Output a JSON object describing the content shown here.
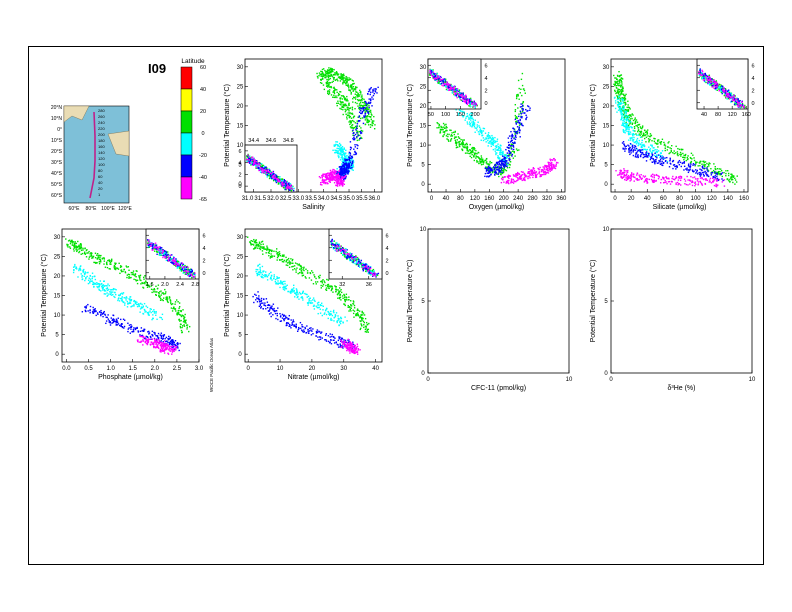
{
  "header": {
    "section_id": "I09"
  },
  "map": {
    "lat_labels": [
      "20°N",
      "10°N",
      "0°",
      "10°S",
      "20°S",
      "30°S",
      "40°S",
      "50°S",
      "60°S"
    ],
    "lon_labels": [
      "60°E",
      "80°E",
      "100°E",
      "120°E"
    ],
    "station_labels": [
      "280",
      "260",
      "240",
      "220",
      "200",
      "180",
      "160",
      "140",
      "120",
      "100",
      "80",
      "60",
      "40",
      "20",
      "1"
    ],
    "colors": {
      "ocean": "#7ec0d8",
      "land": "#e9dcb4",
      "track": "#c0208a"
    }
  },
  "colorbar": {
    "title": "Latitude",
    "tick_labels": [
      "60",
      "40",
      "20",
      "0",
      "-20",
      "-40",
      "-65"
    ],
    "colors": [
      "#ff0000",
      "#ffff00",
      "#00e000",
      "#00ffff",
      "#0000ff",
      "#ff00ff"
    ]
  },
  "side_credit": "WOCE Pacific Ocean Atlas",
  "chart_data": [
    {
      "id": "salinity",
      "type": "scatter",
      "xlabel": "Salinity",
      "ylabel": "Potential Temperature (°C)",
      "xlim": [
        30.9,
        36.3
      ],
      "ylim": [
        -2,
        32
      ],
      "x_ticks": [
        "31.0",
        "31.5",
        "32.0",
        "32.5",
        "33.0",
        "33.5",
        "34.0",
        "34.5",
        "35.0",
        "35.5",
        "36.0"
      ],
      "y_ticks": [
        "0",
        "5",
        "10",
        "15",
        "20",
        "25",
        "30"
      ],
      "series": [
        {
          "color": "#00e000",
          "x": [
            34.0,
            34.3,
            34.8,
            35.2,
            35.6,
            35.9,
            33.8,
            34.6,
            35.0,
            35.4
          ],
          "y": [
            29,
            28.5,
            27,
            24,
            20,
            15,
            28,
            22,
            18,
            12
          ]
        },
        {
          "color": "#00ffff",
          "x": [
            34.5,
            34.7,
            34.9,
            35.0,
            34.8,
            34.6
          ],
          "y": [
            10,
            8,
            6,
            5,
            4,
            3
          ]
        },
        {
          "color": "#0000ff",
          "x": [
            34.6,
            34.7,
            34.8,
            35.0,
            35.5,
            36.0
          ],
          "y": [
            2,
            3,
            4,
            6,
            18,
            25
          ]
        },
        {
          "color": "#ff00ff",
          "x": [
            33.9,
            34.2,
            34.4,
            34.6,
            34.7
          ],
          "y": [
            1,
            2,
            3,
            0.5,
            1.5
          ]
        }
      ],
      "inset": {
        "x_ticks": [
          "34.4",
          "34.6",
          "34.8"
        ],
        "y_ticks": [
          "0",
          "2",
          "4",
          "6"
        ],
        "xlim": [
          34.3,
          34.9
        ],
        "ylim": [
          -1,
          7
        ]
      }
    },
    {
      "id": "oxygen",
      "type": "scatter",
      "xlabel": "Oxygen (µmol/kg)",
      "ylabel": "Potential Temperature (°C)",
      "xlim": [
        -10,
        370
      ],
      "ylim": [
        -2,
        32
      ],
      "x_ticks": [
        "0",
        "40",
        "80",
        "120",
        "160",
        "200",
        "240",
        "280",
        "320",
        "360"
      ],
      "y_ticks": [
        "0",
        "5",
        "10",
        "15",
        "20",
        "25",
        "30"
      ],
      "series": [
        {
          "color": "#00e000",
          "x": [
            20,
            60,
            100,
            140,
            190,
            230,
            250
          ],
          "y": [
            15,
            12,
            9,
            6,
            3,
            10,
            28
          ]
        },
        {
          "color": "#00ffff",
          "x": [
            60,
            100,
            140,
            180,
            200
          ],
          "y": [
            22,
            17,
            13,
            10,
            6
          ]
        },
        {
          "color": "#0000ff",
          "x": [
            150,
            180,
            200,
            230,
            260
          ],
          "y": [
            3,
            4,
            6,
            13,
            20
          ]
        },
        {
          "color": "#ff00ff",
          "x": [
            200,
            240,
            280,
            320,
            340
          ],
          "y": [
            1,
            2,
            3,
            4,
            6
          ]
        }
      ],
      "inset": {
        "x_ticks": [
          "50",
          "100",
          "150",
          "200"
        ],
        "y_ticks": [
          "0",
          "2",
          "4",
          "6"
        ],
        "xlim": [
          40,
          220
        ],
        "ylim": [
          -1,
          7
        ]
      }
    },
    {
      "id": "silicate",
      "type": "scatter",
      "xlabel": "Silicate (µmol/kg)",
      "ylabel": "Potential Temperature (°C)",
      "xlim": [
        -5,
        165
      ],
      "ylim": [
        -2,
        32
      ],
      "x_ticks": [
        "0",
        "20",
        "40",
        "60",
        "80",
        "100",
        "120",
        "140",
        "160"
      ],
      "y_ticks": [
        "0",
        "5",
        "10",
        "15",
        "20",
        "25",
        "30"
      ],
      "series": [
        {
          "color": "#00e000",
          "x": [
            2,
            5,
            10,
            20,
            40,
            80,
            120,
            150
          ],
          "y": [
            28,
            24,
            20,
            16,
            12,
            8,
            4,
            1
          ]
        },
        {
          "color": "#00ffff",
          "x": [
            3,
            8,
            15,
            30,
            60
          ],
          "y": [
            22,
            18,
            14,
            10,
            7
          ]
        },
        {
          "color": "#0000ff",
          "x": [
            10,
            30,
            60,
            100,
            130
          ],
          "y": [
            10,
            8,
            6,
            4,
            2
          ]
        },
        {
          "color": "#ff00ff",
          "x": [
            5,
            20,
            50,
            90,
            130
          ],
          "y": [
            3,
            2,
            1.5,
            1,
            0.5
          ]
        }
      ],
      "inset": {
        "x_ticks": [
          "40",
          "80",
          "120",
          "160"
        ],
        "y_ticks": [
          "0",
          "2",
          "4",
          "6"
        ],
        "xlim": [
          20,
          165
        ],
        "ylim": [
          -1,
          7
        ]
      }
    },
    {
      "id": "phosphate",
      "type": "scatter",
      "xlabel": "Phosphate (µmol/kg)",
      "ylabel": "Potential Temperature (°C)",
      "xlim": [
        -0.1,
        3.0
      ],
      "ylim": [
        -2,
        32
      ],
      "x_ticks": [
        "0.0",
        "0.5",
        "1.0",
        "1.5",
        "2.0",
        "2.5",
        "3.0"
      ],
      "y_ticks": [
        "0",
        "5",
        "10",
        "15",
        "20",
        "25",
        "30"
      ],
      "series": [
        {
          "color": "#00e000",
          "x": [
            0.05,
            0.3,
            0.8,
            1.4,
            2.0,
            2.5,
            2.7
          ],
          "y": [
            29,
            27,
            24,
            21,
            17,
            12,
            6
          ]
        },
        {
          "color": "#00ffff",
          "x": [
            0.2,
            0.6,
            1.0,
            1.5,
            2.2
          ],
          "y": [
            22,
            19,
            16,
            13,
            9
          ]
        },
        {
          "color": "#0000ff",
          "x": [
            0.4,
            1.0,
            1.6,
            2.2,
            2.5
          ],
          "y": [
            12,
            9,
            6,
            4,
            2
          ]
        },
        {
          "color": "#ff00ff",
          "x": [
            1.6,
            2.0,
            2.2,
            2.4
          ],
          "y": [
            4,
            3,
            2,
            1
          ]
        }
      ],
      "inset": {
        "x_ticks": [
          "1.6",
          "2.0",
          "2.4",
          "2.8"
        ],
        "y_ticks": [
          "0",
          "2",
          "4",
          "6"
        ],
        "xlim": [
          1.5,
          2.9
        ],
        "ylim": [
          -1,
          7
        ]
      }
    },
    {
      "id": "nitrate",
      "type": "scatter",
      "xlabel": "Nitrate (µmol/kg)",
      "ylabel": "Potential Temperature (°C)",
      "xlim": [
        -1,
        42
      ],
      "ylim": [
        -2,
        32
      ],
      "x_ticks": [
        "0",
        "10",
        "20",
        "30",
        "40"
      ],
      "y_ticks": [
        "0",
        "5",
        "10",
        "15",
        "20",
        "25",
        "30"
      ],
      "series": [
        {
          "color": "#00e000",
          "x": [
            0.5,
            5,
            12,
            20,
            28,
            34,
            37
          ],
          "y": [
            29,
            27,
            24,
            20,
            16,
            11,
            6
          ]
        },
        {
          "color": "#00ffff",
          "x": [
            2,
            8,
            15,
            22,
            30
          ],
          "y": [
            22,
            19,
            16,
            12,
            8
          ]
        },
        {
          "color": "#0000ff",
          "x": [
            2,
            8,
            16,
            26,
            33
          ],
          "y": [
            15,
            11,
            7,
            4,
            2
          ]
        },
        {
          "color": "#ff00ff",
          "x": [
            30,
            32,
            34
          ],
          "y": [
            3,
            2,
            1
          ]
        }
      ],
      "inset": {
        "x_ticks": [
          "32",
          "36"
        ],
        "y_ticks": [
          "0",
          "2",
          "4",
          "6"
        ],
        "xlim": [
          30,
          38
        ],
        "ylim": [
          -1,
          7
        ]
      }
    },
    {
      "id": "cfc11",
      "type": "scatter",
      "xlabel": "CFC-11 (pmol/kg)",
      "ylabel": "Potential Temperature (°C)",
      "xlim": [
        0,
        10
      ],
      "ylim": [
        0,
        10
      ],
      "x_ticks": [
        "0",
        "10"
      ],
      "y_ticks": [
        "0",
        "5",
        "10"
      ],
      "series": []
    },
    {
      "id": "helium",
      "type": "scatter",
      "xlabel": "δ³He (%)",
      "ylabel": "Potential Temperature (°C)",
      "xlim": [
        0,
        10
      ],
      "ylim": [
        0,
        10
      ],
      "x_ticks": [
        "0",
        "10"
      ],
      "y_ticks": [
        "0",
        "5",
        "10"
      ],
      "series": []
    }
  ]
}
